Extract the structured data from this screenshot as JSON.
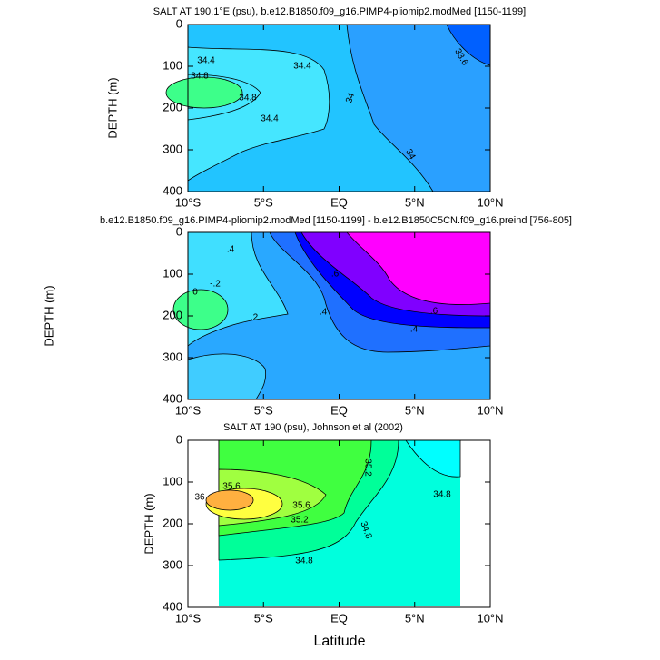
{
  "chart_data": [
    {
      "type": "contour",
      "title": "SALT AT 190.1°E (psu), b.e12.B1850.f09_g16.PIMP4-pliomip2.modMed [1150-1199]",
      "ylabel": "DEPTH (m)",
      "xlim": [
        -10,
        10
      ],
      "xticks": [
        {
          "value": -10,
          "label": "10°S"
        },
        {
          "value": -5,
          "label": "5°S"
        },
        {
          "value": 0,
          "label": "EQ"
        },
        {
          "value": 5,
          "label": "5°N"
        },
        {
          "value": 10,
          "label": "10°N"
        }
      ],
      "ylim": [
        400,
        0
      ],
      "yticks": [
        0,
        100,
        200,
        300,
        400
      ],
      "annotations": [
        "34.4",
        "34.4",
        "34.8",
        "34.8",
        "34.4",
        "34",
        "34",
        "33.6"
      ]
    },
    {
      "type": "contour",
      "title": "b.e12.B1850.f09_g16.PIMP4-pliomip2.modMed [1150-1199] - b.e12.B1850C5CN.f09_g16.preind [756-805]",
      "ylabel": "DEPTH (m)",
      "xlim": [
        -10,
        10
      ],
      "xticks": [
        {
          "value": -10,
          "label": "10°S"
        },
        {
          "value": -5,
          "label": "5°S"
        },
        {
          "value": 0,
          "label": "EQ"
        },
        {
          "value": 5,
          "label": "5°N"
        },
        {
          "value": 10,
          "label": "10°N"
        }
      ],
      "ylim": [
        400,
        0
      ],
      "yticks": [
        0,
        100,
        200,
        300,
        400
      ],
      "annotations": [
        ".4",
        "-.2",
        "0",
        ".2",
        ".6",
        ".4",
        ".6",
        ".4"
      ]
    },
    {
      "type": "contour",
      "title": "SALT AT 190 (psu), Johnson et al (2002)",
      "ylabel": "DEPTH (m)",
      "xlabel": "Latitude",
      "xlim": [
        -10,
        10
      ],
      "xticks": [
        {
          "value": -10,
          "label": "10°S"
        },
        {
          "value": -5,
          "label": "5°S"
        },
        {
          "value": 0,
          "label": "EQ"
        },
        {
          "value": 5,
          "label": "5°N"
        },
        {
          "value": 10,
          "label": "10°N"
        }
      ],
      "ylim": [
        400,
        0
      ],
      "yticks": [
        0,
        100,
        200,
        300,
        400
      ],
      "annotations": [
        "35.2",
        "35.6",
        "36",
        "35.6",
        "35.2",
        "34.8",
        "34.8",
        "34.8"
      ]
    }
  ]
}
